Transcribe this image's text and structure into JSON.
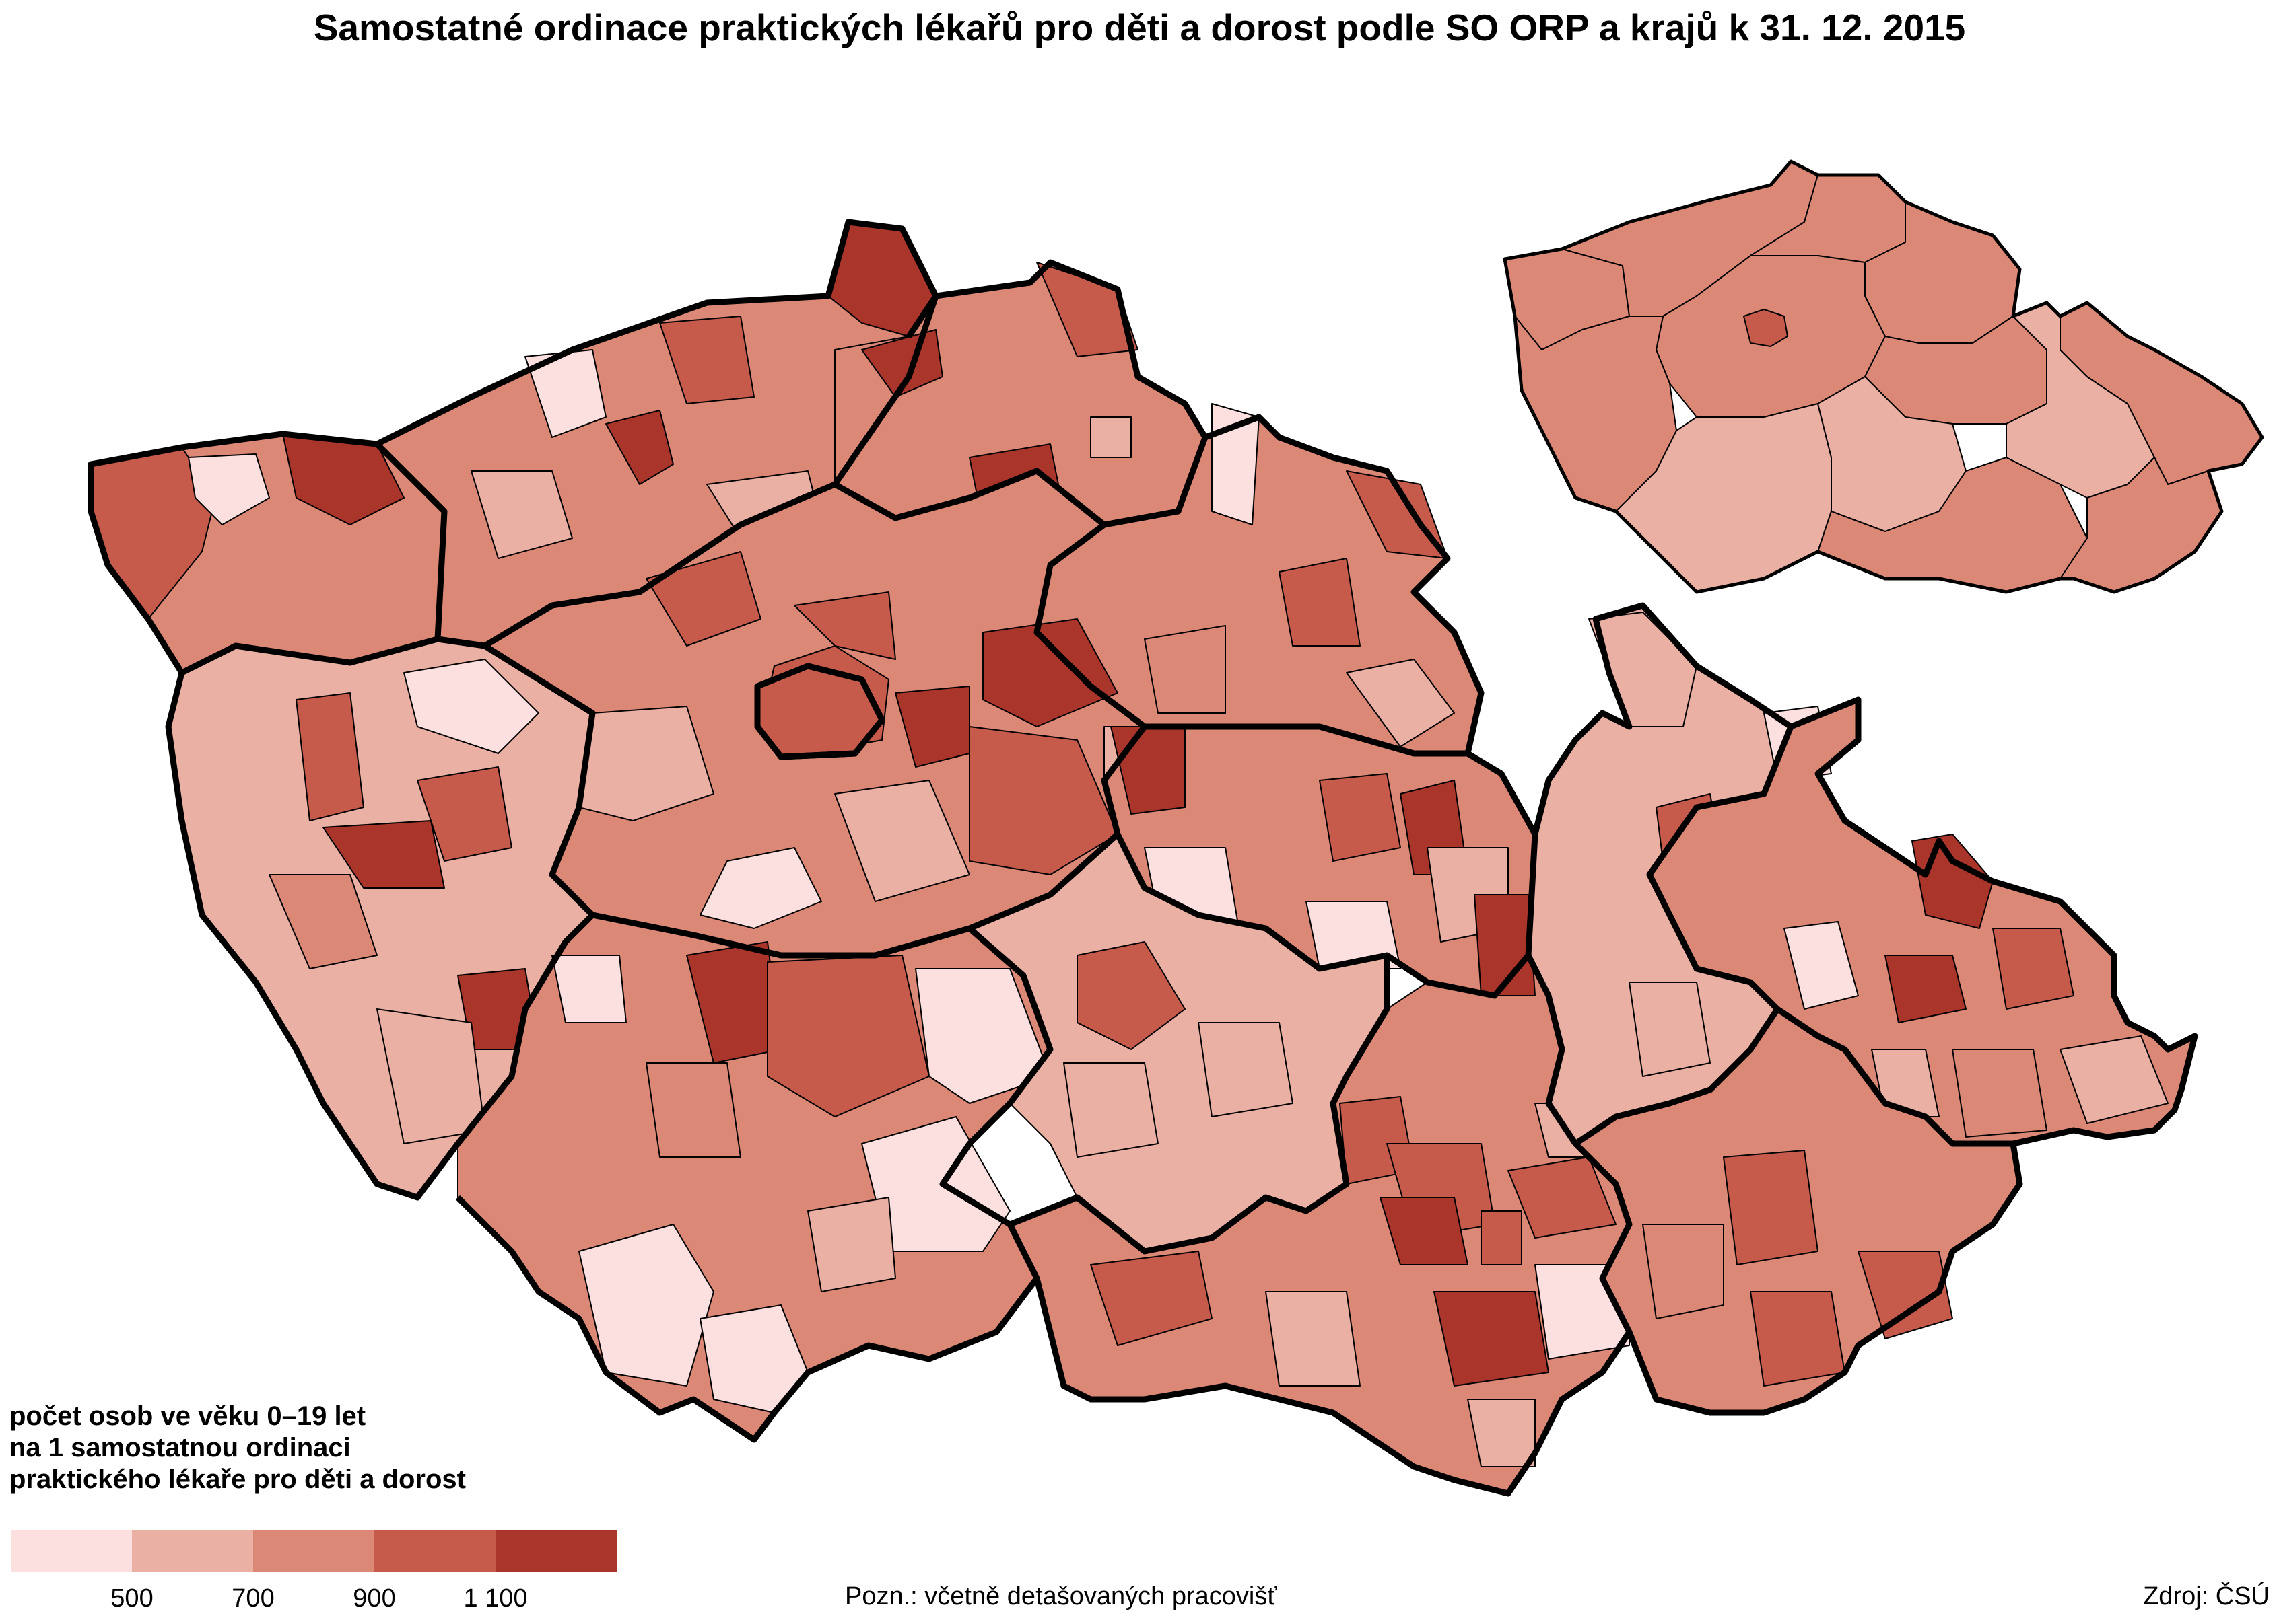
{
  "title": "Samostatné ordinace praktických lékařů pro děti a dorost podle SO ORP a krajů k 31. 12. 2015",
  "legend": {
    "title_lines": [
      "počet osob ve věku 0–19 let",
      "na 1 samostatnou ordinaci",
      "praktického lékaře pro děti a dorost"
    ],
    "classes": [
      {
        "color": "#fbe0df"
      },
      {
        "color": "#ebb0a4"
      },
      {
        "color": "#dc8876"
      },
      {
        "color": "#c65b4c"
      },
      {
        "color": "#a9352b"
      }
    ],
    "ticks": [
      "500",
      "700",
      "900",
      "1 100"
    ]
  },
  "note": "Pozn.: včetně detašovaných pracovišť",
  "source": "Zdroj: ČSÚ",
  "map": {
    "main_map": "SO ORP",
    "inset_map": "kraje"
  }
}
